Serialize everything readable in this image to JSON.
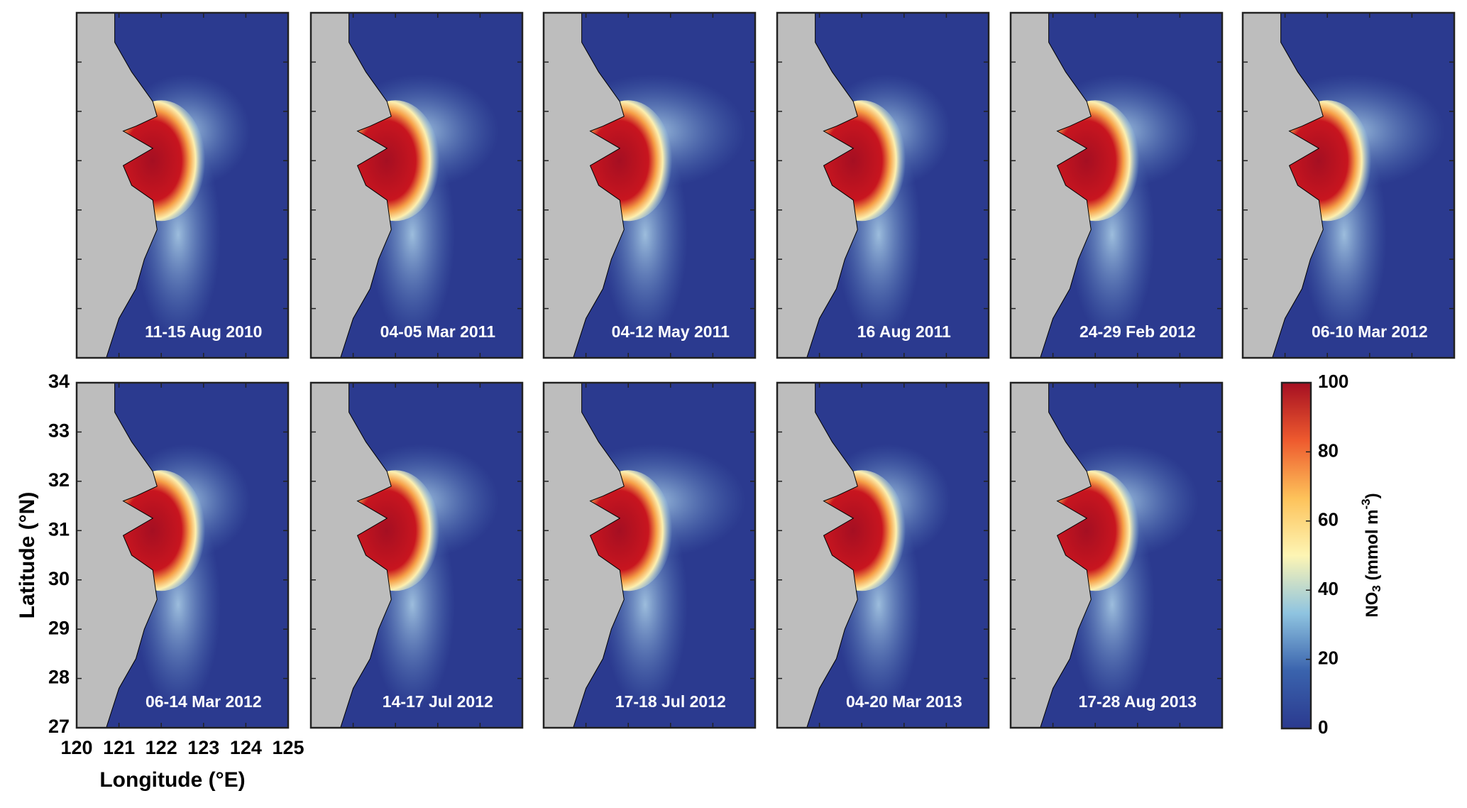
{
  "panels": [
    {
      "label": "11-15 Aug 2010"
    },
    {
      "label": "04-05 Mar 2011"
    },
    {
      "label": "04-12 May 2011"
    },
    {
      "label": "16 Aug 2011"
    },
    {
      "label": "24-29 Feb 2012"
    },
    {
      "label": "06-10 Mar 2012"
    },
    {
      "label": "06-14 Mar 2012"
    },
    {
      "label": "14-17 Jul 2012"
    },
    {
      "label": "17-18 Jul 2012"
    },
    {
      "label": "04-20 Mar 2013"
    },
    {
      "label": "17-28 Aug 2013"
    }
  ],
  "axes": {
    "xlabel": "Longitude (°E)",
    "ylabel": "Latitude (°N)",
    "xlim": [
      120,
      125
    ],
    "ylim": [
      27,
      34
    ],
    "xticks": [
      120,
      121,
      122,
      123,
      124,
      125
    ],
    "yticks": [
      27,
      28,
      29,
      30,
      31,
      32,
      33,
      34
    ]
  },
  "colorbar": {
    "label": {
      "base": "NO",
      "sub": "3",
      "mid": " (mmol m",
      "sup": "-3",
      "end": ")"
    },
    "lim": [
      0,
      100
    ],
    "ticks": [
      0,
      20,
      40,
      60,
      80,
      100
    ],
    "colors": [
      "#2b3a8f",
      "#3a63ad",
      "#8fc4e0",
      "#fdf5b4",
      "#fdc25a",
      "#ee5a2e",
      "#a50f22"
    ]
  }
}
